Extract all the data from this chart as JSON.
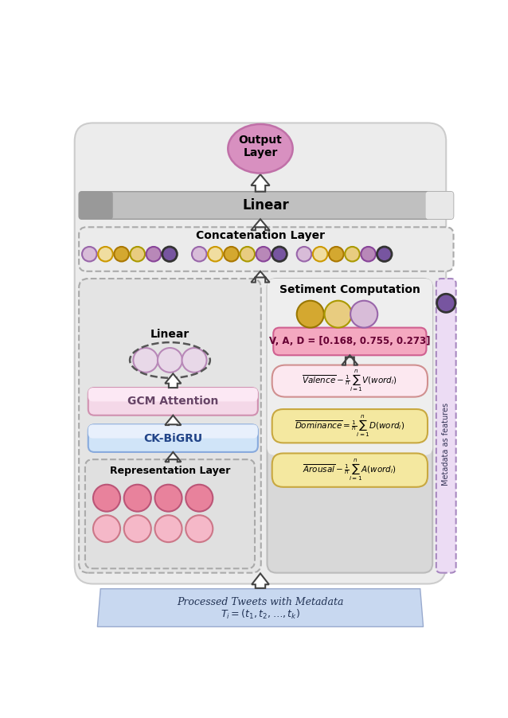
{
  "fig_width": 6.38,
  "fig_height": 9.02,
  "title_output": "Output\nLayer",
  "title_linear": "Linear",
  "title_concat": "Concatenation Layer",
  "title_sentiment": "Setiment Computation",
  "title_linear2": "Linear",
  "title_gcm": "GCM Attention",
  "title_ckbigru": "CK-BiGRU",
  "title_repr": "Representation Layer",
  "title_metadata": "Metadata as features",
  "formula_valence": "$\\overline{Valence} - \\frac{1}{n}\\sum_{i=1}^{n}V(word_i)$",
  "formula_dominance": "$\\overline{Dominance} = \\frac{1}{n}\\sum_{i=1}^{n}D(word_i)$",
  "formula_arousal": "$\\overline{Arousal} - \\frac{1}{n}\\sum_{i=1}^{n}A(word_i)$",
  "formula_vad": "V, A, D = [0.168, 0.755, 0.273]",
  "tweet_line1": "Processed Tweets with Metadata",
  "tweet_line2": "$T_i = (t_1, t_2, \\ldots, t_k)$",
  "colors": {
    "pink_light": "#f5b8c8",
    "pink_mid": "#e8829c",
    "pink_dark": "#c05070",
    "purple_light": "#d8bcd8",
    "purple_light2": "#e8d8e8",
    "purple_mid": "#b888b8",
    "purple_dark": "#7755a0",
    "gold": "#d4a830",
    "gold_light": "#e8cc80",
    "gold_lighter": "#f0dda0",
    "blue_ckbigru": "#c0d8f4",
    "blue_grad_light": "#e0eeff",
    "gray_outer": "#e8e8e8",
    "gray_sent": "#d8d8d8",
    "gray_sent_light": "#eeeeee",
    "white": "#ffffff",
    "output_fill": "#d890c0",
    "output_edge": "#c070a8",
    "valence_bg": "#fce8f0",
    "valence_edge": "#d09090",
    "dominance_bg": "#f4e8a0",
    "dominance_edge": "#c8a840",
    "arousal_bg": "#f4e8a0",
    "arousal_edge": "#c8a840",
    "vad_bg": "#f4a8c0",
    "vad_edge": "#d06090",
    "meta_bg": "#ecdcf4",
    "meta_edge": "#a888c0",
    "gcm_bg": "#f4d8e8",
    "gcm_edge": "#d090b0",
    "tweet_bg": "#b8cce8",
    "tweet_shadow": "#8aabcc",
    "concat_bg": "#ebebeb",
    "left_panel_bg": "#e4e4e4",
    "repr_bg": "#e0e0e0",
    "linear_bar_main": "#c0c0c0",
    "linear_bar_dark": "#999999",
    "linear_bar_light": "#e8e8e8"
  }
}
